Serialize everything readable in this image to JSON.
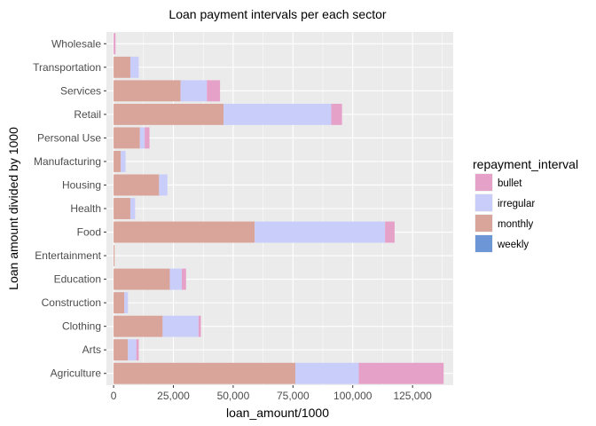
{
  "chart_data": {
    "type": "bar",
    "orientation": "horizontal",
    "stacked": true,
    "title": "Loan payment intervals per each sector",
    "xlabel": "loan_amount/1000",
    "ylabel": "Loan amount divided by 1000",
    "xlim": [
      -3000,
      142000
    ],
    "x_ticks": [
      0,
      25000,
      50000,
      75000,
      100000,
      125000
    ],
    "x_tick_labels": [
      "0",
      "25,000",
      "50,000",
      "75,000",
      "100,000",
      "125,000"
    ],
    "categories": [
      "Wholesale",
      "Transportation",
      "Services",
      "Retail",
      "Personal Use",
      "Manufacturing",
      "Housing",
      "Health",
      "Food",
      "Entertainment",
      "Education",
      "Construction",
      "Clothing",
      "Arts",
      "Agriculture"
    ],
    "series": [
      {
        "name": "monthly",
        "values": [
          0,
          7000,
          28000,
          46000,
          11000,
          3000,
          19000,
          7000,
          59000,
          400,
          23500,
          4500,
          20500,
          6000,
          76000
        ]
      },
      {
        "name": "irregular",
        "values": [
          0,
          3500,
          11000,
          45000,
          2000,
          2000,
          3500,
          2000,
          54500,
          0,
          5000,
          1500,
          15000,
          3500,
          26500
        ]
      },
      {
        "name": "bullet",
        "values": [
          800,
          0,
          5500,
          4500,
          2000,
          0,
          0,
          0,
          4000,
          0,
          1800,
          0,
          1000,
          1000,
          35500
        ]
      },
      {
        "name": "weekly",
        "values": [
          0,
          0,
          0,
          0,
          0,
          0,
          0,
          0,
          0,
          0,
          0,
          0,
          0,
          0,
          0
        ]
      }
    ],
    "legend": {
      "title": "repayment_interval",
      "position": "right",
      "entries": [
        "bullet",
        "irregular",
        "monthly",
        "weekly"
      ]
    },
    "colors": {
      "bullet": "#e6a1c9",
      "irregular": "#c9cdfa",
      "monthly": "#d9a499",
      "weekly": "#6c96d6",
      "panel": "#ebebeb",
      "grid": "#ffffff"
    },
    "grid": true
  }
}
